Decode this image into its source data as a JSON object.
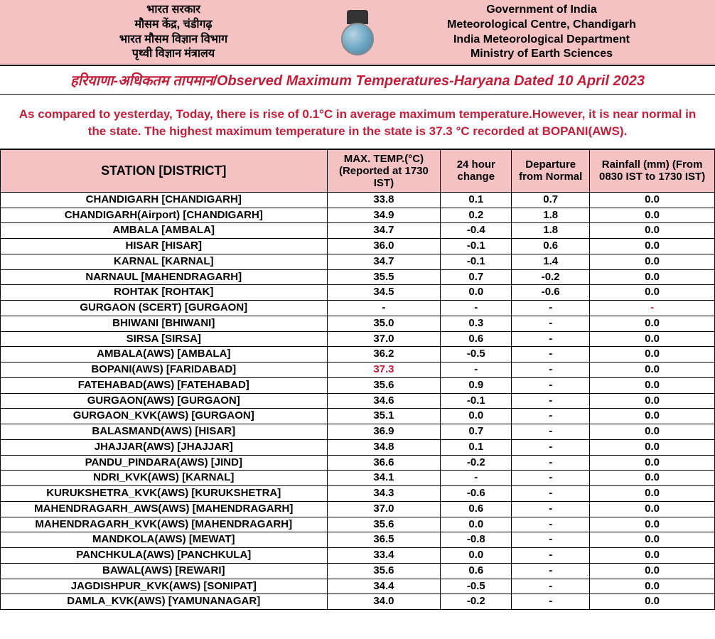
{
  "header": {
    "left_lines": [
      "भारत सरकार",
      "मौसम केंद्र, चंडीगढ़",
      "भारत मौसम विज्ञान विभाग",
      "पृथ्वी विज्ञान मंत्रालय"
    ],
    "right_lines": [
      "Government of India",
      "Meteorological Centre, Chandigarh",
      "India Meteorological Department",
      "Ministry of Earth Sciences"
    ]
  },
  "title": "हरियाणा-अधिकतम तापमान/Observed Maximum Temperatures-Haryana Dated 10 April 2023",
  "summary": "As compared to yesterday, Today, there is rise of 0.1°C in average maximum temperature.However, it is near normal in the state. The highest maximum temperature in the state is 37.3 °C recorded at BOPANI(AWS).",
  "colors": {
    "header_bg": "#f4c2c2",
    "title_color": "#c41e3a",
    "highlight_color": "#c41e3a",
    "border": "#000000",
    "bg": "#ffffff"
  },
  "table": {
    "columns": [
      {
        "label_l1": "STATION  [DISTRICT]",
        "label_l2": ""
      },
      {
        "label_l1": "MAX. TEMP.(°C)",
        "label_l2": "(Reported at 1730 IST)"
      },
      {
        "label_l1": "24 hour",
        "label_l2": "change"
      },
      {
        "label_l1": "Departure",
        "label_l2": "from Normal"
      },
      {
        "label_l1": "Rainfall (mm) (From",
        "label_l2": "0830 IST to 1730 IST)"
      }
    ],
    "rows": [
      {
        "station": "CHANDIGARH  [CHANDIGARH]",
        "temp": "33.8",
        "change": "0.1",
        "dep": "0.7",
        "rain": "0.0"
      },
      {
        "station": "CHANDIGARH(Airport)  [CHANDIGARH]",
        "temp": "34.9",
        "change": "0.2",
        "dep": "1.8",
        "rain": "0.0"
      },
      {
        "station": "AMBALA  [AMBALA]",
        "temp": "34.7",
        "change": "-0.4",
        "dep": "1.8",
        "rain": "0.0"
      },
      {
        "station": "HISAR  [HISAR]",
        "temp": "36.0",
        "change": "-0.1",
        "dep": "0.6",
        "rain": "0.0"
      },
      {
        "station": "KARNAL  [KARNAL]",
        "temp": "34.7",
        "change": "-0.1",
        "dep": "1.4",
        "rain": "0.0"
      },
      {
        "station": "NARNAUL  [MAHENDRAGARH]",
        "temp": "35.5",
        "change": "0.7",
        "dep": "-0.2",
        "rain": "0.0"
      },
      {
        "station": "ROHTAK  [ROHTAK]",
        "temp": "34.5",
        "change": "0.0",
        "dep": "-0.6",
        "rain": "0.0"
      },
      {
        "station": "GURGAON (SCERT)  [GURGAON]",
        "temp": "-",
        "change": "-",
        "dep": "-",
        "rain": "-",
        "rain_hl": true
      },
      {
        "station": "BHIWANI  [BHIWANI]",
        "temp": "35.0",
        "change": "0.3",
        "dep": "-",
        "rain": "0.0"
      },
      {
        "station": "SIRSA  [SIRSA]",
        "temp": "37.0",
        "change": "0.6",
        "dep": "-",
        "rain": "0.0"
      },
      {
        "station": "AMBALA(AWS)  [AMBALA]",
        "temp": "36.2",
        "change": "-0.5",
        "dep": "-",
        "rain": "0.0"
      },
      {
        "station": "BOPANI(AWS)  [FARIDABAD]",
        "temp": "37.3",
        "temp_hl": true,
        "change": "-",
        "dep": "-",
        "rain": "0.0"
      },
      {
        "station": "FATEHABAD(AWS)  [FATEHABAD]",
        "temp": "35.6",
        "change": "0.9",
        "dep": "-",
        "rain": "0.0"
      },
      {
        "station": "GURGAON(AWS)  [GURGAON]",
        "temp": "34.6",
        "change": "-0.1",
        "dep": "-",
        "rain": "0.0"
      },
      {
        "station": "GURGAON_KVK(AWS)  [GURGAON]",
        "temp": "35.1",
        "change": "0.0",
        "dep": "-",
        "rain": "0.0"
      },
      {
        "station": "BALASMAND(AWS)  [HISAR]",
        "temp": "36.9",
        "change": "0.7",
        "dep": "-",
        "rain": "0.0"
      },
      {
        "station": "JHAJJAR(AWS)  [JHAJJAR]",
        "temp": "34.8",
        "change": "0.1",
        "dep": "-",
        "rain": "0.0"
      },
      {
        "station": "PANDU_PINDARA(AWS)  [JIND]",
        "temp": "36.6",
        "change": "-0.2",
        "dep": "-",
        "rain": "0.0"
      },
      {
        "station": "NDRI_KVK(AWS)  [KARNAL]",
        "temp": "34.1",
        "change": "-",
        "dep": "-",
        "rain": "0.0"
      },
      {
        "station": "KURUKSHETRA_KVK(AWS)  [KURUKSHETRA]",
        "temp": "34.3",
        "change": "-0.6",
        "dep": "-",
        "rain": "0.0"
      },
      {
        "station": "MAHENDRAGARH_AWS(AWS)  [MAHENDRAGARH]",
        "temp": "37.0",
        "change": "0.6",
        "dep": "-",
        "rain": "0.0"
      },
      {
        "station": "MAHENDRAGARH_KVK(AWS)  [MAHENDRAGARH]",
        "temp": "35.6",
        "change": "0.0",
        "dep": "-",
        "rain": "0.0"
      },
      {
        "station": "MANDKOLA(AWS)  [MEWAT]",
        "temp": "36.5",
        "change": "-0.8",
        "dep": "-",
        "rain": "0.0"
      },
      {
        "station": "PANCHKULA(AWS)  [PANCHKULA]",
        "temp": "33.4",
        "change": "0.0",
        "dep": "-",
        "rain": "0.0"
      },
      {
        "station": "BAWAL(AWS)  [REWARI]",
        "temp": "35.6",
        "change": "0.6",
        "dep": "-",
        "rain": "0.0"
      },
      {
        "station": "JAGDISHPUR_KVK(AWS)  [SONIPAT]",
        "temp": "34.4",
        "change": "-0.5",
        "dep": "-",
        "rain": "0.0"
      },
      {
        "station": "DAMLA_KVK(AWS)  [YAMUNANAGAR]",
        "temp": "34.0",
        "change": "-0.2",
        "dep": "-",
        "rain": "0.0"
      }
    ]
  }
}
